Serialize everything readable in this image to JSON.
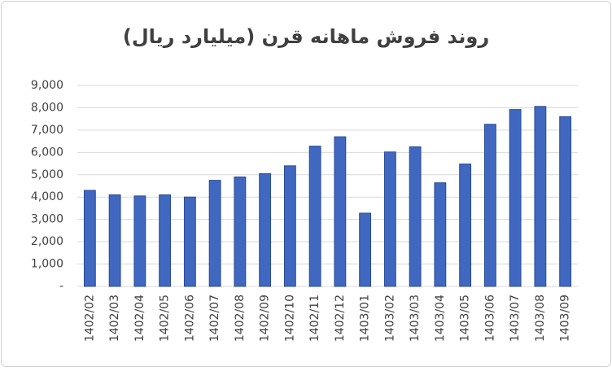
{
  "chart_data": {
    "type": "bar",
    "title": "روند فروش ماهانه قرن (میلیارد ریال)",
    "categories": [
      "1402/02",
      "1402/03",
      "1402/04",
      "1402/05",
      "1402/06",
      "1402/07",
      "1402/08",
      "1402/09",
      "1402/10",
      "1402/11",
      "1402/12",
      "1403/01",
      "1403/02",
      "1403/03",
      "1403/04",
      "1403/05",
      "1403/06",
      "1403/07",
      "1403/08",
      "1403/09"
    ],
    "values": [
      4300,
      4100,
      4050,
      4100,
      4000,
      4750,
      4900,
      5050,
      5400,
      6280,
      6700,
      3280,
      6020,
      6250,
      4640,
      5480,
      7260,
      7920,
      8060,
      7600
    ],
    "color": "#4068c0",
    "ylim": [
      0,
      9000
    ],
    "yticks": [
      {
        "value": 0,
        "label": "-"
      },
      {
        "value": 1000,
        "label": "1,000"
      },
      {
        "value": 2000,
        "label": "2,000"
      },
      {
        "value": 3000,
        "label": "3,000"
      },
      {
        "value": 4000,
        "label": "4,000"
      },
      {
        "value": 5000,
        "label": "5,000"
      },
      {
        "value": 6000,
        "label": "6,000"
      },
      {
        "value": 7000,
        "label": "7,000"
      },
      {
        "value": 8000,
        "label": "8,000"
      },
      {
        "value": 9000,
        "label": "9,000"
      }
    ],
    "grid": true
  }
}
